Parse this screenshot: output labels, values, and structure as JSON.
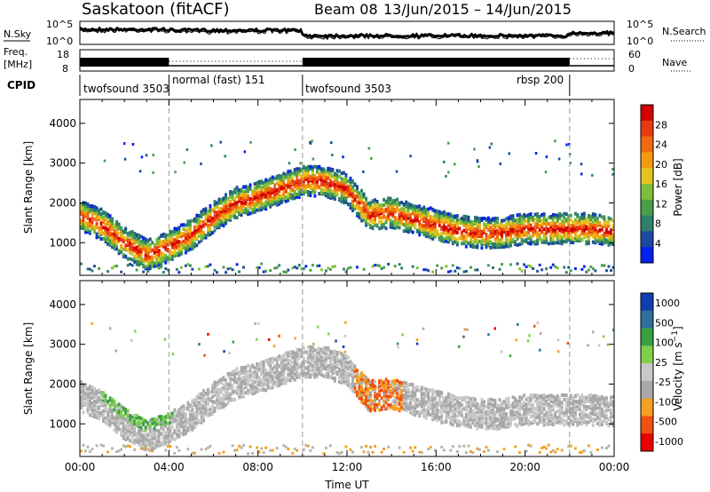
{
  "header": {
    "station": "Saskatoon (fitACF)",
    "beam": "Beam 08",
    "date_range": "13/Jun/2015 – 14/Jun/2015"
  },
  "nsky_panel": {
    "label_left": "N.Sky",
    "label_right": "N.Search",
    "left_ticks": [
      "10^5",
      "10^0"
    ],
    "right_ticks": [
      "10^5",
      "10^0"
    ]
  },
  "freq_panel": {
    "label_left_line1": "Freq.",
    "label_left_line2": "[MHz]",
    "label_right": "Nave",
    "left_ticks": [
      "18",
      "8"
    ],
    "right_ticks": [
      "60",
      "0"
    ]
  },
  "cpid_panel": {
    "label": "CPID",
    "segments": [
      {
        "name": "twofsound 3503",
        "start_h": 0
      },
      {
        "name": "normal (fast) 151",
        "start_h": 4
      },
      {
        "name": "twofsound 3503",
        "start_h": 10
      },
      {
        "name": "rbsp 200",
        "start_h": 22
      }
    ]
  },
  "colors": {
    "scale_power": [
      "#0022ee",
      "#1b4a9e",
      "#2f7f6b",
      "#4a9e4a",
      "#7cc03a",
      "#e6c41e",
      "#f49a10",
      "#f06a10",
      "#e83a10",
      "#d40000"
    ],
    "scale_velocity": [
      "#e80000",
      "#f05010",
      "#f4a020",
      "#a8a8a8",
      "#c8c8c8",
      "#7ed04a",
      "#3aa040",
      "#2f6f9a",
      "#1040b0"
    ],
    "ground_grey": "#b4b4ac"
  },
  "chart_data": [
    {
      "type": "heatmap",
      "name_id": "power",
      "xlabel": "",
      "ylabel": "Slant Range [km]",
      "x_ticks": [
        "00:00",
        "04:00",
        "08:00",
        "12:00",
        "16:00",
        "20:00",
        "00:00"
      ],
      "y_ticks": [
        1000,
        2000,
        3000,
        4000
      ],
      "x_range_hours": [
        0,
        24
      ],
      "y_range_km": [
        180,
        4600
      ],
      "colorbar": {
        "label": "Power [dB]",
        "ticks": [
          4,
          8,
          12,
          16,
          20,
          24,
          28
        ],
        "range": [
          0,
          32
        ]
      },
      "dashed_vertical_lines_h": [
        4,
        10,
        22
      ],
      "echo_band": [
        [
          0,
          1700
        ],
        [
          1,
          1450
        ],
        [
          2,
          1000
        ],
        [
          3,
          700
        ],
        [
          4,
          900
        ],
        [
          5,
          1200
        ],
        [
          6,
          1650
        ],
        [
          7,
          2000
        ],
        [
          8,
          2150
        ],
        [
          9,
          2350
        ],
        [
          10,
          2550
        ],
        [
          11,
          2550
        ],
        [
          12,
          2350
        ],
        [
          13,
          1700
        ],
        [
          14,
          1750
        ],
        [
          15,
          1600
        ],
        [
          16,
          1450
        ],
        [
          17,
          1300
        ],
        [
          18,
          1250
        ],
        [
          19,
          1250
        ],
        [
          20,
          1350
        ],
        [
          21,
          1350
        ],
        [
          22,
          1350
        ],
        [
          23,
          1350
        ],
        [
          24,
          1300
        ]
      ]
    },
    {
      "type": "heatmap",
      "name_id": "velocity",
      "xlabel": "Time UT",
      "ylabel": "Slant Range [km]",
      "x_ticks": [
        "00:00",
        "04:00",
        "08:00",
        "12:00",
        "16:00",
        "20:00",
        "00:00"
      ],
      "y_ticks": [
        1000,
        2000,
        3000,
        4000
      ],
      "x_range_hours": [
        0,
        24
      ],
      "y_range_km": [
        180,
        4600
      ],
      "colorbar": {
        "label": "Velocity [m s^-1]",
        "ticks": [
          1000,
          500,
          100,
          25,
          -25,
          -100,
          -500,
          -1000
        ]
      },
      "dashed_vertical_lines_h": [
        4,
        10,
        22
      ],
      "echo_band": [
        [
          0,
          1700
        ],
        [
          1,
          1450
        ],
        [
          2,
          1000
        ],
        [
          3,
          700
        ],
        [
          4,
          900
        ],
        [
          5,
          1200
        ],
        [
          6,
          1650
        ],
        [
          7,
          2000
        ],
        [
          8,
          2150
        ],
        [
          9,
          2350
        ],
        [
          10,
          2550
        ],
        [
          11,
          2550
        ],
        [
          12,
          2350
        ],
        [
          13,
          1700
        ],
        [
          14,
          1750
        ],
        [
          15,
          1600
        ],
        [
          16,
          1450
        ],
        [
          17,
          1300
        ],
        [
          18,
          1250
        ],
        [
          19,
          1250
        ],
        [
          20,
          1350
        ],
        [
          21,
          1350
        ],
        [
          22,
          1350
        ],
        [
          23,
          1350
        ],
        [
          24,
          1300
        ]
      ]
    }
  ]
}
